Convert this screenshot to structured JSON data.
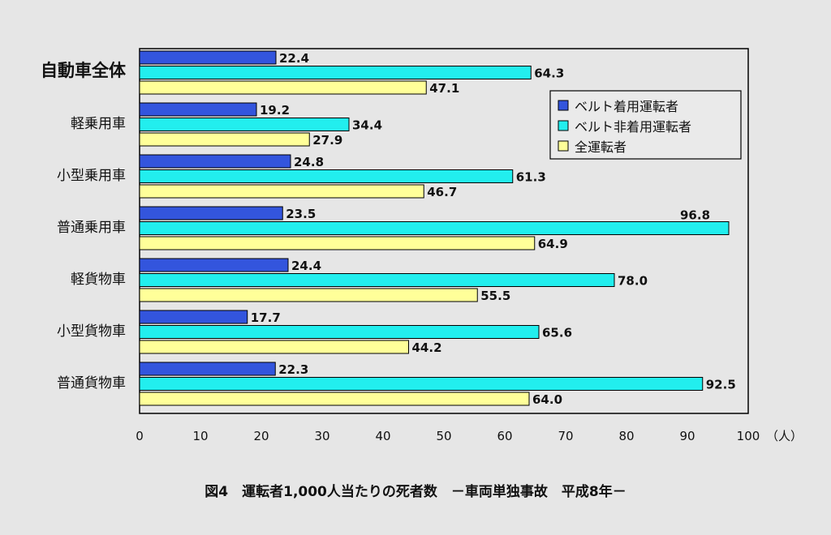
{
  "chart_data": {
    "type": "bar",
    "orientation": "horizontal",
    "title": "図4　運転者1,000人当たりの死者数　－車両単独事故　平成8年－",
    "categories": [
      "自動車全体",
      "軽乗用車",
      "小型乗用車",
      "普通乗用車",
      "軽貨物車",
      "小型貨物車",
      "普通貨物車"
    ],
    "series": [
      {
        "name": "ベルト着用運転者",
        "color": "#3355dd",
        "values": [
          22.4,
          19.2,
          24.8,
          23.5,
          24.4,
          17.7,
          22.3
        ]
      },
      {
        "name": "ベルト非着用運転者",
        "color": "#22eeee",
        "values": [
          64.3,
          34.4,
          61.3,
          96.8,
          78.0,
          65.6,
          92.5
        ]
      },
      {
        "name": "全運転者",
        "color": "#ffff99",
        "values": [
          47.1,
          27.9,
          46.7,
          64.9,
          55.5,
          44.2,
          64.0
        ]
      }
    ],
    "xlim": [
      0,
      100
    ],
    "xticks": [
      "0",
      "10",
      "20",
      "30",
      "40",
      "50",
      "60",
      "70",
      "80",
      "90",
      "100"
    ],
    "xunit": "（人）",
    "legend": "top-right",
    "grid": false
  }
}
